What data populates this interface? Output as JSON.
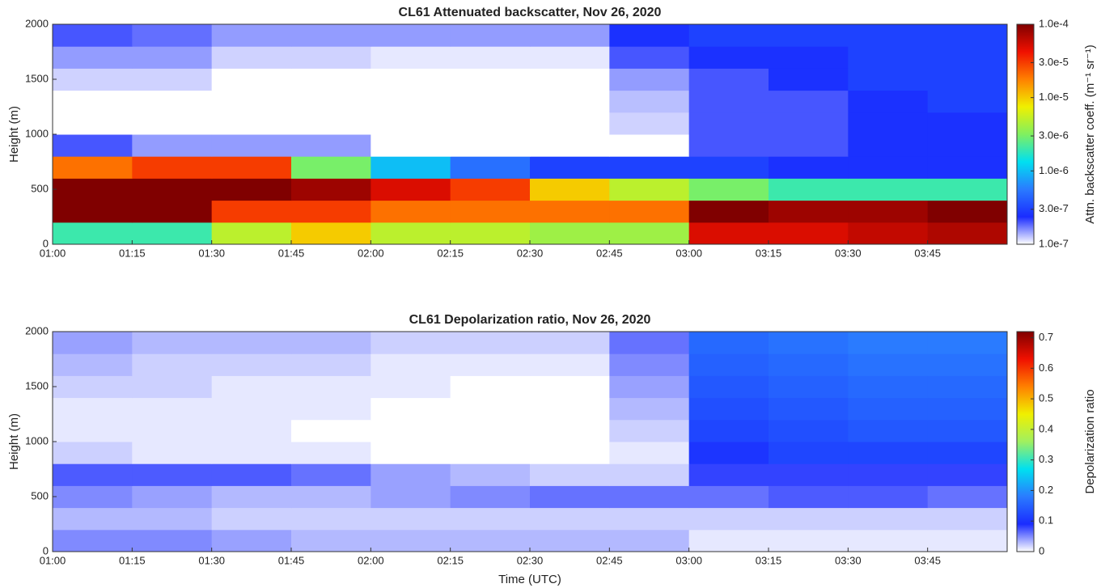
{
  "chart_data": [
    {
      "type": "heatmap",
      "title": "CL61 Attenuated backscatter, Nov 26, 2020",
      "y_label": "Height (m)",
      "categories": [
        "01:00",
        "01:15",
        "01:30",
        "01:45",
        "02:00",
        "02:15",
        "02:30",
        "02:45",
        "03:00",
        "03:15",
        "03:30",
        "03:45"
      ],
      "y_bins": [
        0,
        200,
        400,
        600,
        800,
        1000,
        1200,
        1400,
        1600,
        1800,
        2000
      ],
      "ylim": [
        0,
        2000
      ],
      "yticks": [
        0,
        500,
        1000,
        1500,
        2000
      ],
      "values": [
        [
          2e-06,
          2e-06,
          5e-06,
          1e-05,
          5e-06,
          5e-06,
          4e-06,
          4e-06,
          5e-05,
          5e-05,
          6e-05,
          7e-05
        ],
        [
          0.0001,
          0.0001,
          3e-05,
          3e-05,
          2e-05,
          2e-05,
          2e-05,
          2e-05,
          0.0001,
          8e-05,
          8e-05,
          0.0001
        ],
        [
          0.0001,
          0.0001,
          0.0001,
          8e-05,
          5e-05,
          3e-05,
          1e-05,
          5e-06,
          3e-06,
          2e-06,
          2e-06,
          2e-06
        ],
        [
          2e-05,
          3e-05,
          3e-05,
          3e-06,
          1e-06,
          5e-07,
          3e-07,
          3e-07,
          3e-07,
          2.5e-07,
          2.5e-07,
          2.5e-07
        ],
        [
          2e-07,
          1.5e-07,
          1.5e-07,
          1.5e-07,
          1e-07,
          1e-07,
          1e-07,
          1e-07,
          2e-07,
          2e-07,
          2.5e-07,
          2.5e-07
        ],
        [
          1e-07,
          1e-07,
          1e-07,
          1e-07,
          1e-07,
          1e-07,
          1e-07,
          1.2e-07,
          2e-07,
          2e-07,
          2.5e-07,
          2.5e-07
        ],
        [
          1e-07,
          1e-07,
          1e-07,
          1e-07,
          1e-07,
          1e-07,
          1e-07,
          1.3e-07,
          2e-07,
          2e-07,
          2.5e-07,
          3e-07
        ],
        [
          1.2e-07,
          1.2e-07,
          1e-07,
          1e-07,
          1e-07,
          1e-07,
          1e-07,
          1.5e-07,
          2e-07,
          2.5e-07,
          3e-07,
          3e-07
        ],
        [
          1.5e-07,
          1.5e-07,
          1.2e-07,
          1.2e-07,
          1.1e-07,
          1.1e-07,
          1.1e-07,
          2e-07,
          2.5e-07,
          2.5e-07,
          3e-07,
          3e-07
        ],
        [
          2e-07,
          1.8e-07,
          1.5e-07,
          1.5e-07,
          1.5e-07,
          1.5e-07,
          1.5e-07,
          2.5e-07,
          3e-07,
          3e-07,
          3e-07,
          3e-07
        ]
      ],
      "log": true,
      "clim": [
        1e-07,
        0.0001
      ],
      "cticks": [
        {
          "value": 1e-07,
          "label": "1.0e-7"
        },
        {
          "value": 3e-07,
          "label": "3.0e-7"
        },
        {
          "value": 1e-06,
          "label": "1.0e-6"
        },
        {
          "value": 3e-06,
          "label": "3.0e-6"
        },
        {
          "value": 1e-05,
          "label": "1.0e-5"
        },
        {
          "value": 3e-05,
          "label": "3.0e-5"
        },
        {
          "value": 0.0001,
          "label": "1.0e-4"
        }
      ],
      "colorbar_label": "Attn. backscatter coeff. (m⁻¹ sr⁻¹)",
      "colormap": [
        "#ffffff",
        "#1a2cff",
        "#2a7bff",
        "#00e0f0",
        "#80f060",
        "#f0f000",
        "#ff8000",
        "#f01000",
        "#800000"
      ]
    },
    {
      "type": "heatmap",
      "title": "CL61 Depolarization ratio, Nov 26, 2020",
      "y_label": "Height (m)",
      "x_label": "Time (UTC)",
      "categories": [
        "01:00",
        "01:15",
        "01:30",
        "01:45",
        "02:00",
        "02:15",
        "02:30",
        "02:45",
        "03:00",
        "03:15",
        "03:30",
        "03:45"
      ],
      "y_bins": [
        0,
        200,
        400,
        600,
        800,
        1000,
        1200,
        1400,
        1600,
        1800,
        2000
      ],
      "ylim": [
        0,
        2000
      ],
      "yticks": [
        0,
        500,
        1000,
        1500,
        2000
      ],
      "values": [
        [
          0.05,
          0.05,
          0.04,
          0.03,
          0.03,
          0.03,
          0.03,
          0.03,
          0.01,
          0.01,
          0.01,
          0.01
        ],
        [
          0.03,
          0.03,
          0.02,
          0.02,
          0.02,
          0.02,
          0.02,
          0.02,
          0.02,
          0.02,
          0.02,
          0.02
        ],
        [
          0.05,
          0.04,
          0.03,
          0.03,
          0.04,
          0.05,
          0.06,
          0.06,
          0.06,
          0.07,
          0.07,
          0.06
        ],
        [
          0.07,
          0.07,
          0.07,
          0.06,
          0.04,
          0.03,
          0.02,
          0.02,
          0.08,
          0.08,
          0.08,
          0.08
        ],
        [
          0.02,
          0.01,
          0.01,
          0.01,
          0,
          0,
          0,
          0.01,
          0.1,
          0.12,
          0.12,
          0.12
        ],
        [
          0.01,
          0.01,
          0.01,
          0,
          0,
          0,
          0,
          0.02,
          0.12,
          0.13,
          0.14,
          0.14
        ],
        [
          0.01,
          0.01,
          0.01,
          0.01,
          0,
          0,
          0,
          0.03,
          0.13,
          0.14,
          0.15,
          0.15
        ],
        [
          0.02,
          0.02,
          0.01,
          0.01,
          0.01,
          0,
          0,
          0.04,
          0.14,
          0.15,
          0.16,
          0.16
        ],
        [
          0.03,
          0.02,
          0.02,
          0.02,
          0.01,
          0.01,
          0.01,
          0.05,
          0.15,
          0.16,
          0.17,
          0.17
        ],
        [
          0.04,
          0.03,
          0.03,
          0.03,
          0.02,
          0.02,
          0.02,
          0.06,
          0.16,
          0.17,
          0.18,
          0.18
        ]
      ],
      "log": false,
      "clim": [
        0,
        0.72
      ],
      "cticks": [
        0,
        0.1,
        0.2,
        0.3,
        0.4,
        0.5,
        0.6,
        0.7
      ],
      "colorbar_label": "Depolarization ratio",
      "colormap": [
        "#ffffff",
        "#1a2cff",
        "#2a7bff",
        "#00e0f0",
        "#a0f060",
        "#f0f000",
        "#ff8000",
        "#f01000",
        "#800000"
      ]
    }
  ]
}
